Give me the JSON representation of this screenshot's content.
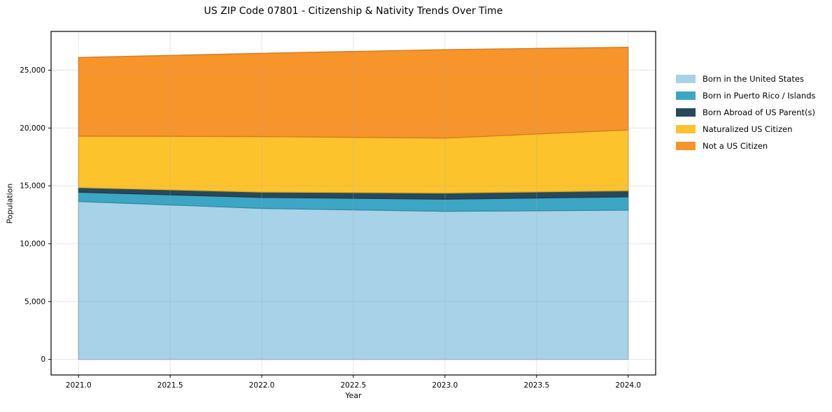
{
  "figure": {
    "title": "US ZIP Code 07801 - Citizenship & Nativity Trends Over Time"
  },
  "chart_data": {
    "type": "area",
    "stacked": true,
    "title": "US ZIP Code 07801 - Citizenship & Nativity Trends Over Time",
    "xlabel": "Year",
    "ylabel": "Population",
    "x": [
      2021.0,
      2022.0,
      2023.0,
      2024.0
    ],
    "series": [
      {
        "name": "Born in the United States",
        "color": "#A7D2E8",
        "values": [
          13650,
          13050,
          12800,
          12900
        ]
      },
      {
        "name": "Born in Puerto Rico / Islands",
        "color": "#3DA6C4",
        "values": [
          800,
          950,
          1050,
          1150
        ]
      },
      {
        "name": "Born Abroad of US Parent(s)",
        "color": "#26495C",
        "values": [
          400,
          460,
          530,
          530
        ]
      },
      {
        "name": "Naturalized US Citizen",
        "color": "#FCC32D",
        "values": [
          4450,
          4800,
          4750,
          5250
        ]
      },
      {
        "name": "Not a US Citizen",
        "color": "#F7942A",
        "values": [
          6800,
          7200,
          7650,
          7150
        ]
      }
    ],
    "totals": [
      26100,
      26460,
      26780,
      26980
    ],
    "xlim": [
      2020.85,
      2024.15
    ],
    "ylim": [
      -1350,
      28350
    ],
    "x_tick_values": [
      2021.0,
      2021.5,
      2022.0,
      2022.5,
      2023.0,
      2023.5,
      2024.0
    ],
    "x_tick_labels": [
      "2021.0",
      "2021.5",
      "2022.0",
      "2022.5",
      "2023.0",
      "2023.5",
      "2024.0"
    ],
    "y_tick_values": [
      0,
      5000,
      10000,
      15000,
      20000,
      25000
    ],
    "y_tick_labels": [
      "0",
      "5,000",
      "10,000",
      "15,000",
      "20,000",
      "25,000"
    ],
    "grid": true,
    "legend_position": "right"
  },
  "colors": {
    "background": "#ffffff",
    "grid_over": "rgba(170,170,170,0.30)",
    "spine": "#000000",
    "tick": "#000000",
    "text": "#000000"
  }
}
